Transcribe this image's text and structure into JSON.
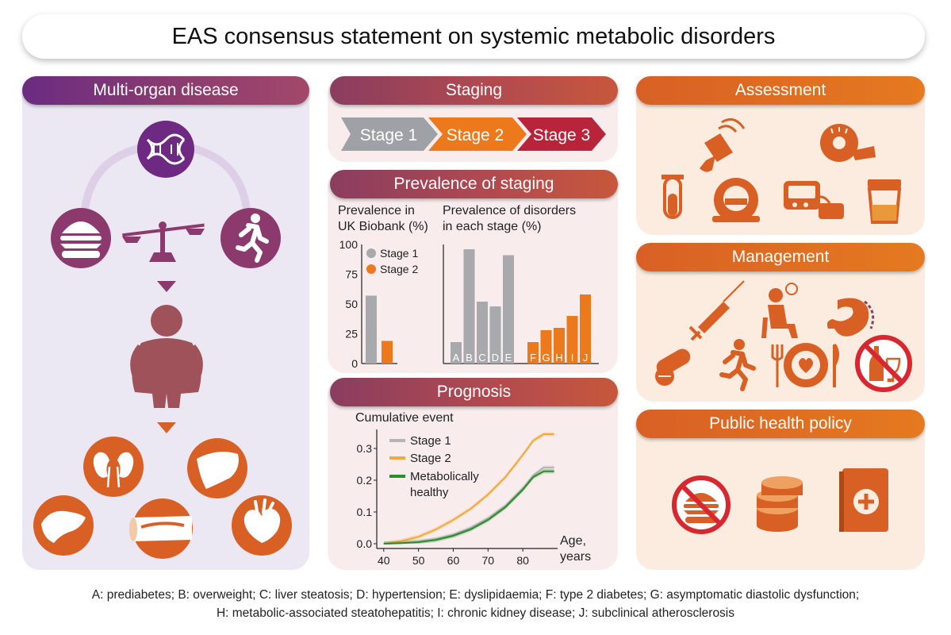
{
  "title": "EAS consensus statement on systemic metabolic disorders",
  "panels": {
    "multi_organ": {
      "header": "Multi-organ disease"
    },
    "staging": {
      "header": "Staging",
      "stages": [
        "Stage 1",
        "Stage 2",
        "Stage 3"
      ],
      "stage_colors": [
        "#9ea1a6",
        "#ec7a1c",
        "#b8243a"
      ]
    },
    "prevalence": {
      "header": "Prevalence of staging",
      "left_title_line1": "Prevalence in",
      "left_title_line2": "UK Biobank (%)",
      "right_title_line1": "Prevalence of disorders",
      "right_title_line2": "in each stage (%)"
    },
    "prognosis": {
      "header": "Prognosis",
      "ylabel": "Cumulative event",
      "xlabel_line1": "Age,",
      "xlabel_line2": "years"
    },
    "assessment": {
      "header": "Assessment"
    },
    "management": {
      "header": "Management"
    },
    "policy": {
      "header": "Public health policy"
    }
  },
  "icons": {
    "multi_organ": [
      "dna-icon",
      "burger-icon",
      "balance-scale-icon",
      "running-person-icon",
      "arrow-down-icon",
      "obese-person-icon",
      "kidneys-icon",
      "liver-icon",
      "pancreas-icon",
      "artery-icon",
      "heart-icon"
    ],
    "assessment": [
      "ultrasound-probe-icon",
      "tape-measure-icon",
      "test-tube-icon",
      "mri-scanner-icon",
      "blood-pressure-monitor-icon",
      "urine-sample-cup-icon"
    ],
    "management": [
      "syringe-icon",
      "counselling-icon",
      "stomach-surgery-icon",
      "pills-icon",
      "running-icon",
      "healthy-plate-icon",
      "no-alcohol-icon"
    ],
    "policy": [
      "no-fast-food-icon",
      "coins-icon",
      "health-book-icon"
    ]
  },
  "chart_data": [
    {
      "type": "bar",
      "title": "Prevalence in UK Biobank (%)",
      "categories": [
        "Stage 1",
        "Stage 2"
      ],
      "values": [
        57,
        19
      ],
      "ylim": [
        0,
        100
      ],
      "yticks": [
        0,
        25,
        50,
        75,
        100
      ],
      "legend": [
        "Stage 1",
        "Stage 2"
      ],
      "legend_position": "top-right",
      "colors": [
        "#a7a9ac",
        "#ec7a1c"
      ]
    },
    {
      "type": "bar",
      "title": "Prevalence of disorders in each stage (%)",
      "categories": [
        "A",
        "B",
        "C",
        "D",
        "E",
        "F",
        "G",
        "H",
        "I",
        "J"
      ],
      "values": [
        18,
        96,
        52,
        48,
        91,
        18,
        28,
        30,
        40,
        58
      ],
      "stage": [
        1,
        1,
        1,
        1,
        1,
        2,
        2,
        2,
        2,
        2
      ],
      "ylim": [
        0,
        100
      ],
      "colors": [
        "#a7a9ac",
        "#ec7a1c"
      ]
    },
    {
      "type": "line",
      "ylabel": "Cumulative event",
      "xlabel": "Age, years",
      "xticks": [
        40,
        50,
        60,
        70,
        80
      ],
      "yticks": [
        0.0,
        0.1,
        0.2,
        0.3
      ],
      "xlim": [
        38,
        90
      ],
      "ylim": [
        -0.015,
        0.36
      ],
      "series": [
        {
          "name": "Stage 1",
          "color": "#b3b5b8",
          "x": [
            40,
            45,
            50,
            55,
            60,
            65,
            70,
            75,
            80,
            83,
            86,
            89
          ],
          "y": [
            0,
            0.002,
            0.006,
            0.014,
            0.028,
            0.05,
            0.08,
            0.12,
            0.175,
            0.215,
            0.24,
            0.24
          ]
        },
        {
          "name": "Stage 2",
          "color": "#f2a93b",
          "x": [
            40,
            45,
            50,
            55,
            60,
            65,
            70,
            75,
            80,
            83,
            86,
            89
          ],
          "y": [
            0,
            0.008,
            0.022,
            0.045,
            0.075,
            0.11,
            0.155,
            0.21,
            0.28,
            0.325,
            0.345,
            0.345
          ]
        },
        {
          "name": "Metabolically healthy",
          "color": "#2e8b2e",
          "x": [
            40,
            45,
            50,
            55,
            60,
            65,
            70,
            75,
            80,
            83,
            86,
            89
          ],
          "y": [
            0,
            0.002,
            0.005,
            0.012,
            0.025,
            0.045,
            0.075,
            0.115,
            0.17,
            0.21,
            0.228,
            0.228
          ]
        }
      ],
      "legend_labels": [
        "Stage 1",
        "Stage 2",
        "Metabolically",
        "healthy"
      ]
    }
  ],
  "footnote": {
    "line1": "A: prediabetes; B: overweight; C: liver steatosis; D: hypertension; E: dyslipidaemia; F: type 2 diabetes; G: asymptomatic diastolic dysfunction;",
    "line2": "H: metabolic-associated steatohepatitis; I: chronic kidney disease; J: subclinical atherosclerosis"
  }
}
